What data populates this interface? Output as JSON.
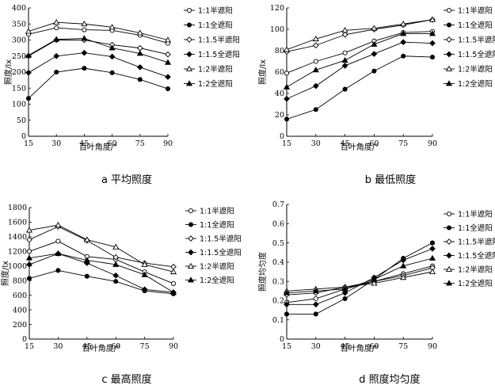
{
  "chart_data": [
    {
      "type": "line",
      "caption": "a  平均照度",
      "xlabel": "百叶角度/°",
      "ylabel": "照度/lx",
      "x": [
        15,
        30,
        45,
        60,
        75,
        90
      ],
      "xlim": [
        15,
        90
      ],
      "ylim": [
        0,
        400
      ],
      "yticks": [
        0,
        50,
        100,
        150,
        200,
        250,
        300,
        350,
        400
      ],
      "legend_position": "right",
      "series": [
        {
          "name": "1:1半遮阳",
          "marker": "circle-open",
          "values": [
            318,
            338,
            332,
            330,
            315,
            290
          ]
        },
        {
          "name": "1:1全遮阳",
          "marker": "circle-filled",
          "values": [
            118,
            200,
            212,
            198,
            177,
            148
          ]
        },
        {
          "name": "1:1.5半遮阳",
          "marker": "diamond-open",
          "values": [
            250,
            300,
            300,
            285,
            275,
            255
          ]
        },
        {
          "name": "1:1.5全遮阳",
          "marker": "diamond-filled",
          "values": [
            198,
            250,
            260,
            248,
            215,
            185
          ]
        },
        {
          "name": "1:2半遮阳",
          "marker": "triangle-open",
          "values": [
            327,
            355,
            350,
            340,
            322,
            300
          ]
        },
        {
          "name": "1:2全遮阳",
          "marker": "triangle-filled",
          "values": [
            252,
            302,
            305,
            275,
            258,
            230
          ]
        }
      ]
    },
    {
      "type": "line",
      "caption": "b  最低照度",
      "xlabel": "百叶角度/°",
      "ylabel": "照度/lx",
      "x": [
        15,
        30,
        45,
        60,
        75,
        90
      ],
      "xlim": [
        15,
        90
      ],
      "ylim": [
        0,
        120
      ],
      "yticks": [
        0,
        20,
        40,
        60,
        80,
        100,
        120
      ],
      "legend_position": "right",
      "series": [
        {
          "name": "1:1半遮阳",
          "marker": "circle-open",
          "values": [
            59,
            70,
            78,
            89,
            97,
            98
          ]
        },
        {
          "name": "1:1全遮阳",
          "marker": "circle-filled",
          "values": [
            16,
            25,
            44,
            61,
            75,
            74
          ]
        },
        {
          "name": "1:1.5半遮阳",
          "marker": "diamond-open",
          "values": [
            79,
            85,
            95,
            100,
            104,
            109
          ]
        },
        {
          "name": "1:1.5全遮阳",
          "marker": "diamond-filled",
          "values": [
            35,
            47,
            66,
            77,
            88,
            87
          ]
        },
        {
          "name": "1:2半遮阳",
          "marker": "triangle-open",
          "values": [
            81,
            91,
            99,
            101,
            105,
            109
          ]
        },
        {
          "name": "1:2全遮阳",
          "marker": "triangle-filled",
          "values": [
            46,
            62,
            71,
            86,
            96,
            96
          ]
        }
      ]
    },
    {
      "type": "line",
      "caption": "c  最高照度",
      "xlabel": "百叶角度/°",
      "ylabel": "照度/lx",
      "x": [
        15,
        30,
        45,
        60,
        75,
        90
      ],
      "xlim": [
        15,
        90
      ],
      "ylim": [
        0,
        1800
      ],
      "yticks": [
        0,
        200,
        400,
        600,
        800,
        1000,
        1200,
        1400,
        1600,
        1800
      ],
      "legend_position": "right",
      "series": [
        {
          "name": "1:1半遮阳",
          "marker": "circle-open",
          "values": [
            1200,
            1340,
            1130,
            1090,
            920,
            760
          ]
        },
        {
          "name": "1:1全遮阳",
          "marker": "circle-filled",
          "values": [
            830,
            940,
            860,
            790,
            660,
            620
          ]
        },
        {
          "name": "1:1.5半遮阳",
          "marker": "diamond-open",
          "values": [
            1360,
            1540,
            1350,
            1120,
            1040,
            990
          ]
        },
        {
          "name": "1:1.5全遮阳",
          "marker": "diamond-filled",
          "values": [
            1020,
            1170,
            1040,
            870,
            680,
            640
          ]
        },
        {
          "name": "1:2半遮阳",
          "marker": "triangle-open",
          "values": [
            1490,
            1560,
            1360,
            1260,
            1020,
            920
          ]
        },
        {
          "name": "1:2全遮阳",
          "marker": "triangle-filled",
          "values": [
            1110,
            1170,
            1080,
            1020,
            880,
            640
          ]
        }
      ]
    },
    {
      "type": "line",
      "caption": "d  照度均匀度",
      "xlabel": "百叶角度/°",
      "ylabel": "照度均匀度",
      "x": [
        15,
        30,
        45,
        60,
        75,
        90
      ],
      "xlim": [
        15,
        90
      ],
      "ylim": [
        0,
        0.7
      ],
      "yticks": [
        0,
        0.1,
        0.2,
        0.3,
        0.4,
        0.5,
        0.6,
        0.7
      ],
      "legend_position": "right",
      "series": [
        {
          "name": "1:1半遮阳",
          "marker": "circle-open",
          "values": [
            0.19,
            0.21,
            0.26,
            0.3,
            0.34,
            0.38
          ]
        },
        {
          "name": "1:1全遮阳",
          "marker": "circle-filled",
          "values": [
            0.13,
            0.13,
            0.21,
            0.31,
            0.42,
            0.5
          ]
        },
        {
          "name": "1:1.5半遮阳",
          "marker": "diamond-open",
          "values": [
            0.23,
            0.24,
            0.27,
            0.3,
            0.33,
            0.37
          ]
        },
        {
          "name": "1:1.5全遮阳",
          "marker": "diamond-filled",
          "values": [
            0.18,
            0.18,
            0.24,
            0.32,
            0.41,
            0.47
          ]
        },
        {
          "name": "1:2半遮阳",
          "marker": "triangle-open",
          "values": [
            0.25,
            0.26,
            0.27,
            0.29,
            0.32,
            0.35
          ]
        },
        {
          "name": "1:2全遮阳",
          "marker": "triangle-filled",
          "values": [
            0.24,
            0.25,
            0.26,
            0.31,
            0.38,
            0.42
          ]
        }
      ]
    }
  ]
}
